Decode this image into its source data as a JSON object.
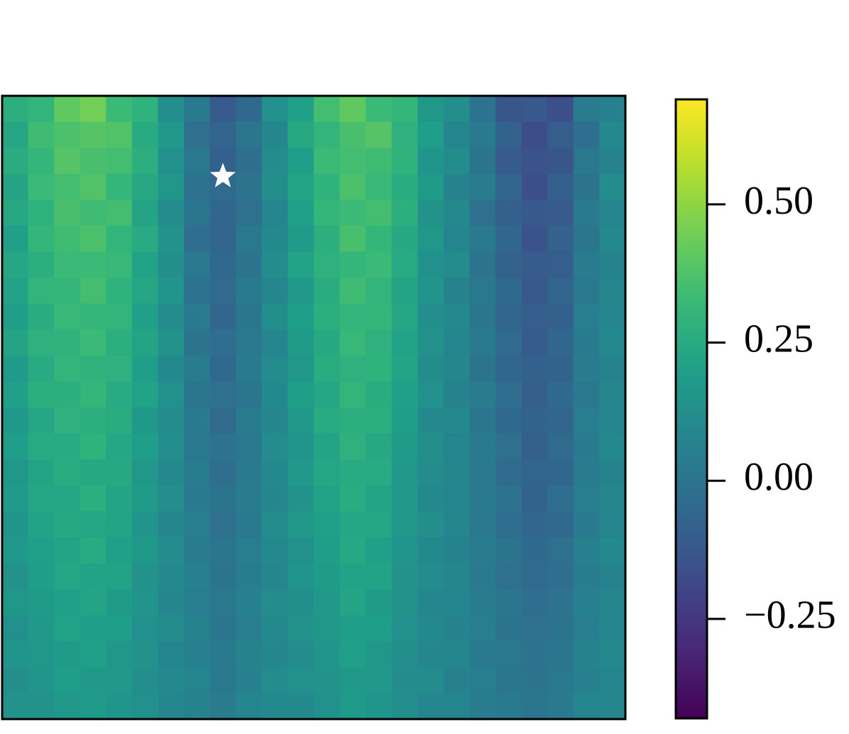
{
  "chart_data": {
    "type": "heatmap",
    "colormap": "viridis",
    "xlim": [
      0,
      24
    ],
    "ylim": [
      24,
      0
    ],
    "values": [
      [
        0.27,
        0.3,
        0.41,
        0.45,
        0.33,
        0.29,
        0.12,
        0.03,
        -0.11,
        -0.05,
        0.13,
        0.2,
        0.35,
        0.41,
        0.33,
        0.31,
        0.16,
        0.12,
        -0.01,
        -0.13,
        -0.12,
        -0.16,
        0.04,
        0.06
      ],
      [
        0.23,
        0.34,
        0.37,
        0.39,
        0.38,
        0.25,
        0.17,
        -0.02,
        -0.07,
        0.01,
        0.09,
        0.24,
        0.3,
        0.36,
        0.39,
        0.28,
        0.19,
        0.08,
        0.03,
        -0.08,
        -0.17,
        -0.1,
        -0.03,
        0.1
      ],
      [
        0.26,
        0.31,
        0.39,
        0.36,
        0.35,
        0.27,
        0.13,
        0.02,
        -0.09,
        -0.03,
        0.11,
        0.19,
        0.33,
        0.35,
        0.34,
        0.29,
        0.15,
        0.11,
        0.0,
        -0.11,
        -0.14,
        -0.13,
        0.02,
        0.07
      ],
      [
        0.22,
        0.33,
        0.35,
        0.38,
        0.31,
        0.24,
        0.16,
        -0.01,
        -0.04,
        0.0,
        0.12,
        0.22,
        0.29,
        0.37,
        0.32,
        0.26,
        0.18,
        0.07,
        0.04,
        -0.07,
        -0.16,
        -0.09,
        0.0,
        0.11
      ],
      [
        0.24,
        0.29,
        0.36,
        0.34,
        0.35,
        0.22,
        0.11,
        0.01,
        -0.06,
        -0.02,
        0.08,
        0.2,
        0.31,
        0.33,
        0.35,
        0.27,
        0.14,
        0.1,
        -0.02,
        -0.09,
        -0.12,
        -0.11,
        0.03,
        0.08
      ],
      [
        0.2,
        0.31,
        0.34,
        0.37,
        0.3,
        0.25,
        0.14,
        -0.03,
        -0.07,
        0.02,
        0.1,
        0.18,
        0.27,
        0.36,
        0.31,
        0.24,
        0.16,
        0.08,
        0.03,
        -0.06,
        -0.14,
        -0.08,
        0.01,
        0.1
      ],
      [
        0.23,
        0.27,
        0.33,
        0.33,
        0.32,
        0.21,
        0.12,
        0.02,
        -0.05,
        0.0,
        0.11,
        0.21,
        0.28,
        0.31,
        0.33,
        0.25,
        0.13,
        0.11,
        0.0,
        -0.08,
        -0.11,
        -0.1,
        0.04,
        0.07
      ],
      [
        0.21,
        0.3,
        0.31,
        0.35,
        0.29,
        0.23,
        0.15,
        -0.01,
        -0.04,
        0.03,
        0.09,
        0.17,
        0.26,
        0.34,
        0.3,
        0.22,
        0.15,
        0.07,
        0.02,
        -0.05,
        -0.12,
        -0.07,
        0.02,
        0.09
      ],
      [
        0.19,
        0.26,
        0.32,
        0.31,
        0.3,
        0.2,
        0.11,
        0.03,
        -0.06,
        0.01,
        0.12,
        0.19,
        0.27,
        0.3,
        0.31,
        0.23,
        0.12,
        0.1,
        0.01,
        -0.07,
        -0.1,
        -0.09,
        0.05,
        0.08
      ],
      [
        0.22,
        0.28,
        0.29,
        0.33,
        0.27,
        0.22,
        0.14,
        0.0,
        -0.03,
        0.02,
        0.08,
        0.18,
        0.24,
        0.32,
        0.28,
        0.21,
        0.14,
        0.08,
        0.03,
        -0.04,
        -0.11,
        -0.06,
        0.03,
        0.1
      ],
      [
        0.18,
        0.25,
        0.3,
        0.29,
        0.28,
        0.19,
        0.1,
        0.04,
        -0.05,
        0.03,
        0.11,
        0.16,
        0.26,
        0.28,
        0.29,
        0.22,
        0.11,
        0.09,
        0.0,
        -0.06,
        -0.09,
        -0.08,
        0.04,
        0.07
      ],
      [
        0.2,
        0.27,
        0.27,
        0.31,
        0.25,
        0.21,
        0.13,
        0.01,
        -0.02,
        0.01,
        0.1,
        0.19,
        0.23,
        0.3,
        0.26,
        0.2,
        0.13,
        0.07,
        0.04,
        -0.03,
        -0.1,
        -0.05,
        0.02,
        0.09
      ],
      [
        0.17,
        0.23,
        0.28,
        0.27,
        0.26,
        0.17,
        0.11,
        0.03,
        -0.04,
        0.04,
        0.09,
        0.17,
        0.25,
        0.27,
        0.27,
        0.19,
        0.1,
        0.1,
        0.01,
        -0.05,
        -0.08,
        -0.07,
        0.05,
        0.08
      ],
      [
        0.19,
        0.25,
        0.25,
        0.29,
        0.23,
        0.19,
        0.12,
        0.02,
        -0.01,
        0.02,
        0.11,
        0.15,
        0.22,
        0.28,
        0.24,
        0.18,
        0.12,
        0.08,
        0.03,
        -0.02,
        -0.09,
        -0.04,
        0.03,
        0.1
      ],
      [
        0.16,
        0.22,
        0.26,
        0.24,
        0.24,
        0.16,
        0.1,
        0.04,
        -0.03,
        0.03,
        0.1,
        0.17,
        0.23,
        0.25,
        0.25,
        0.17,
        0.11,
        0.09,
        0.02,
        -0.04,
        -0.07,
        -0.06,
        0.04,
        0.07
      ],
      [
        0.18,
        0.23,
        0.23,
        0.27,
        0.22,
        0.18,
        0.12,
        0.03,
        0.0,
        0.04,
        0.09,
        0.14,
        0.21,
        0.26,
        0.22,
        0.17,
        0.1,
        0.08,
        0.03,
        -0.01,
        -0.08,
        -0.03,
        0.05,
        0.09
      ],
      [
        0.15,
        0.21,
        0.24,
        0.23,
        0.22,
        0.15,
        0.09,
        0.05,
        -0.02,
        0.03,
        0.11,
        0.16,
        0.2,
        0.23,
        0.23,
        0.16,
        0.12,
        0.09,
        0.02,
        -0.03,
        -0.06,
        -0.05,
        0.03,
        0.08
      ],
      [
        0.17,
        0.2,
        0.22,
        0.25,
        0.2,
        0.17,
        0.11,
        0.04,
        0.01,
        0.05,
        0.1,
        0.13,
        0.19,
        0.24,
        0.2,
        0.15,
        0.1,
        0.07,
        0.04,
        0.0,
        -0.05,
        -0.02,
        0.06,
        0.1
      ],
      [
        0.14,
        0.19,
        0.23,
        0.21,
        0.21,
        0.14,
        0.1,
        0.06,
        0.0,
        0.04,
        0.09,
        0.15,
        0.18,
        0.21,
        0.21,
        0.14,
        0.11,
        0.09,
        0.03,
        -0.02,
        -0.04,
        -0.03,
        0.04,
        0.07
      ],
      [
        0.16,
        0.18,
        0.2,
        0.22,
        0.18,
        0.15,
        0.09,
        0.05,
        0.02,
        0.06,
        0.11,
        0.12,
        0.17,
        0.22,
        0.18,
        0.14,
        0.09,
        0.08,
        0.04,
        0.01,
        -0.03,
        -0.01,
        0.06,
        0.09
      ],
      [
        0.13,
        0.17,
        0.21,
        0.19,
        0.19,
        0.13,
        0.11,
        0.07,
        0.01,
        0.05,
        0.1,
        0.14,
        0.16,
        0.19,
        0.19,
        0.13,
        0.1,
        0.07,
        0.05,
        0.0,
        -0.02,
        0.0,
        0.05,
        0.08
      ],
      [
        0.15,
        0.16,
        0.18,
        0.2,
        0.16,
        0.14,
        0.08,
        0.06,
        0.03,
        0.07,
        0.09,
        0.11,
        0.15,
        0.2,
        0.16,
        0.12,
        0.09,
        0.09,
        0.03,
        0.02,
        -0.01,
        0.01,
        0.07,
        0.1
      ],
      [
        0.12,
        0.15,
        0.19,
        0.17,
        0.17,
        0.12,
        0.1,
        0.08,
        0.02,
        0.06,
        0.11,
        0.13,
        0.14,
        0.17,
        0.17,
        0.11,
        0.11,
        0.06,
        0.05,
        0.01,
        0.0,
        0.02,
        0.06,
        0.08
      ],
      [
        0.14,
        0.14,
        0.16,
        0.18,
        0.15,
        0.13,
        0.09,
        0.07,
        0.04,
        0.08,
        0.1,
        0.1,
        0.13,
        0.18,
        0.15,
        0.12,
        0.08,
        0.08,
        0.04,
        0.03,
        0.01,
        0.03,
        0.08,
        0.09
      ]
    ],
    "marker": {
      "x": 8.5,
      "y": 3.1,
      "symbol": "star",
      "color": "#ffffff"
    },
    "colorbar": {
      "vlim": [
        -0.43,
        0.69
      ],
      "ticks": [
        {
          "value": 0.5,
          "label": "0.50"
        },
        {
          "value": 0.25,
          "label": "0.25"
        },
        {
          "value": 0,
          "label": "0.00"
        },
        {
          "value": -0.25,
          "label": "−0.25"
        }
      ]
    }
  }
}
